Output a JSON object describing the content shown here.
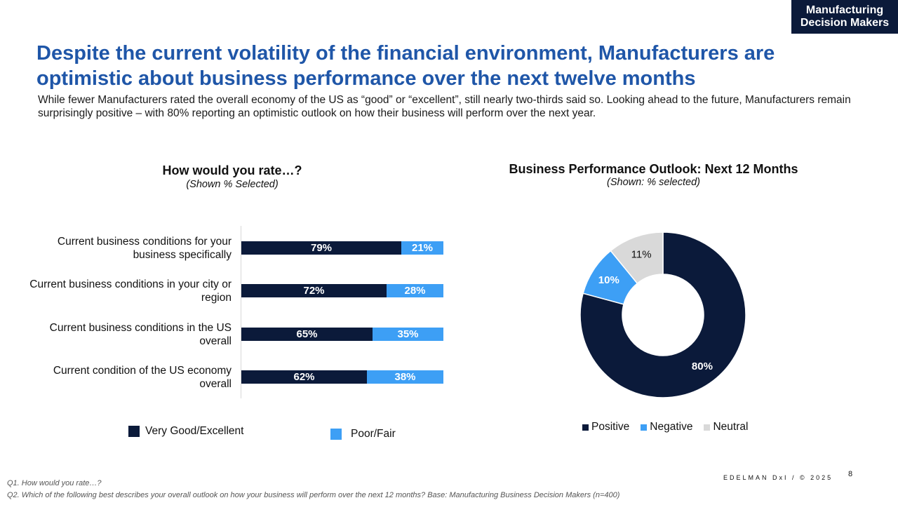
{
  "badge": {
    "line1": "Manufacturing",
    "line2": "Decision Makers"
  },
  "title": "Despite the current volatility of the financial environment, Manufacturers are optimistic about business performance over the next twelve months",
  "subtitle": "While fewer Manufacturers rated the overall economy of the US as “good” or “excellent”, still nearly two-thirds said so. Looking ahead to the future, Manufacturers remain surprisingly positive – with 80% reporting an optimistic outlook on how their business will perform over the next year.",
  "colors": {
    "dark": "#0b1a3a",
    "light": "#3d9ff5",
    "neutral": "#d9d9d9",
    "title": "#1f56a8"
  },
  "chart_data": [
    {
      "type": "bar",
      "orientation": "horizontal",
      "stacked": true,
      "title": "How would you rate…?",
      "subtitle": "(Shown % Selected)",
      "categories": [
        "Current business conditions for your business specifically",
        "Current business conditions in your city or region",
        "Current business conditions in the US overall",
        "Current condition of the US economy overall"
      ],
      "series": [
        {
          "name": "Very Good/Excellent",
          "values": [
            79,
            72,
            65,
            62
          ],
          "labels": [
            "79%",
            "72%",
            "65%",
            "62%"
          ]
        },
        {
          "name": "Poor/Fair",
          "values": [
            21,
            28,
            35,
            38
          ],
          "labels": [
            "21%",
            "28%",
            "35%",
            "38%"
          ]
        }
      ],
      "xlim": [
        0,
        100
      ],
      "legend": "bottom"
    },
    {
      "type": "pie",
      "donut": true,
      "title": "Business Performance Outlook: Next 12 Months",
      "subtitle": "(Shown: % selected)",
      "slices": [
        {
          "name": "Positive",
          "value": 80,
          "label": "80%"
        },
        {
          "name": "Negative",
          "value": 10,
          "label": "10%"
        },
        {
          "name": "Neutral",
          "value": 11,
          "label": "11%"
        }
      ],
      "legend": "bottom"
    }
  ],
  "footer": {
    "brand": "EDELMAN DxI / © 2025",
    "page": "8",
    "q1": "Q1. How would you rate…?",
    "q2": "Q2. Which of the following best describes your overall outlook on how your business will perform over the next 12 months? Base: Manufacturing Business Decision Makers  (n=400)"
  }
}
